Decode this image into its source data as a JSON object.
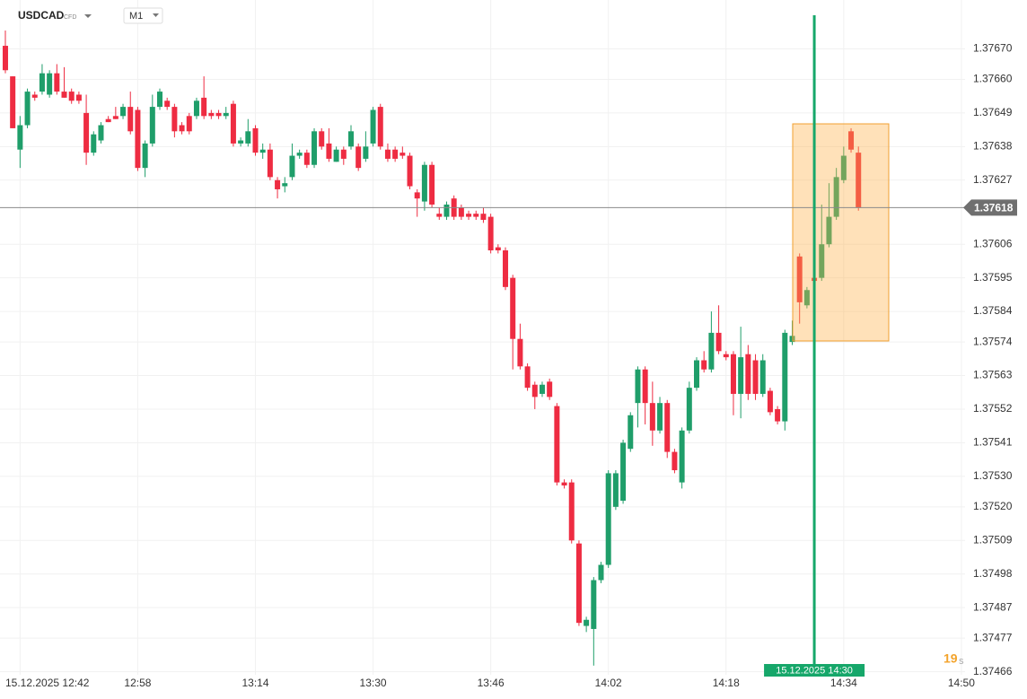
{
  "chart_data": {
    "type": "candlestick",
    "title": "USDCAD",
    "subtitle": "CFD",
    "timeframe": "M1",
    "up_color": "#1f9e6a",
    "down_color": "#ee2c42",
    "grid": true,
    "x": [
      760,
      761,
      762,
      763,
      764,
      765,
      766,
      767,
      768,
      769,
      770,
      771,
      772,
      773,
      774,
      775,
      776,
      777,
      778,
      779,
      780,
      781,
      782,
      783,
      784,
      785,
      786,
      787,
      788,
      789,
      790,
      791,
      792,
      793,
      794,
      795,
      796,
      797,
      798,
      799,
      800,
      801,
      802,
      803,
      804,
      805,
      806,
      807,
      808,
      809,
      810,
      811,
      812,
      813,
      814,
      815,
      816,
      817,
      818,
      819,
      820,
      821,
      822,
      823,
      824,
      825,
      826,
      827,
      828,
      829,
      830,
      831,
      832,
      833,
      834,
      835,
      836,
      837,
      838,
      839,
      840,
      841,
      842,
      843,
      844,
      845,
      846,
      847,
      848,
      849,
      850,
      851,
      852,
      853,
      854,
      855,
      856,
      857,
      858,
      859,
      860,
      861,
      862,
      863,
      864,
      865,
      866,
      867,
      868,
      869,
      870,
      871,
      872,
      873,
      874,
      875,
      876
    ],
    "open": [
      1.37671,
      1.37661,
      1.37637,
      1.37645,
      1.37655,
      1.37656,
      1.37655,
      1.37662,
      1.37656,
      1.37656,
      1.37655,
      1.37649,
      1.37636,
      1.3764,
      1.37647,
      1.37648,
      1.37648,
      1.37651,
      1.3765,
      1.37631,
      1.37639,
      1.37651,
      1.37653,
      1.37651,
      1.37645,
      1.37648,
      1.37648,
      1.37654,
      1.37649,
      1.37649,
      1.37648,
      1.37652,
      1.37639,
      1.37639,
      1.37644,
      1.37636,
      1.37637,
      1.37627,
      1.37625,
      1.37628,
      1.37635,
      1.37636,
      1.37632,
      1.37643,
      1.37639,
      1.37633,
      1.37637,
      1.37638,
      1.37638,
      1.37634,
      1.37639,
      1.37651,
      1.37637,
      1.37637,
      1.37636,
      1.37635,
      1.37623,
      1.3762,
      1.37632,
      1.37616,
      1.37615,
      1.37621,
      1.37618,
      1.37616,
      1.37616,
      1.37616,
      1.37615,
      1.37605,
      1.37604,
      1.37595,
      1.37575,
      1.37566,
      1.3756,
      1.37557,
      1.37561,
      1.37553,
      1.37528,
      1.37528,
      1.37508,
      1.37481,
      1.3748,
      1.37496,
      1.37501,
      1.3752,
      1.37522,
      1.37539,
      1.37554,
      1.37565,
      1.37554,
      1.37545,
      1.37554,
      1.37538,
      1.37528,
      1.37545,
      1.37559,
      1.37568,
      1.37565,
      1.37577,
      1.3757,
      1.3757,
      1.37557,
      1.3757,
      1.37568,
      1.37557,
      1.37558,
      1.37552,
      1.37548,
      1.37574,
      1.37602,
      1.37586,
      1.37595,
      1.37595,
      1.37606,
      1.37615,
      1.37627,
      1.37643,
      1.37636
    ],
    "high": [
      1.37676,
      1.37661,
      1.37648,
      1.37657,
      1.37656,
      1.37665,
      1.37663,
      1.37665,
      1.37664,
      1.37657,
      1.37656,
      1.37655,
      1.37643,
      1.37646,
      1.37648,
      1.37651,
      1.37652,
      1.37656,
      1.37651,
      1.3764,
      1.37655,
      1.37657,
      1.37654,
      1.37652,
      1.37646,
      1.37649,
      1.37654,
      1.37661,
      1.3765,
      1.3765,
      1.37651,
      1.37653,
      1.37641,
      1.37647,
      1.37645,
      1.37639,
      1.37639,
      1.37628,
      1.37628,
      1.37639,
      1.37637,
      1.37637,
      1.37644,
      1.37644,
      1.37644,
      1.37638,
      1.37638,
      1.37645,
      1.37639,
      1.37643,
      1.37651,
      1.37652,
      1.37639,
      1.37638,
      1.37638,
      1.37636,
      1.37624,
      1.37633,
      1.37633,
      1.37618,
      1.3762,
      1.37622,
      1.37619,
      1.37617,
      1.37617,
      1.37618,
      1.37616,
      1.37606,
      1.37605,
      1.37596,
      1.3758,
      1.37567,
      1.37561,
      1.37561,
      1.37562,
      1.37554,
      1.37529,
      1.37529,
      1.37509,
      1.37484,
      1.37497,
      1.37502,
      1.37532,
      1.37532,
      1.37542,
      1.37551,
      1.37566,
      1.37566,
      1.37561,
      1.37556,
      1.37555,
      1.37539,
      1.37546,
      1.37561,
      1.37569,
      1.37571,
      1.37584,
      1.37586,
      1.37571,
      1.37571,
      1.37579,
      1.37573,
      1.3757,
      1.3757,
      1.37559,
      1.37553,
      1.37578,
      1.37581,
      1.37603,
      1.37592,
      1.37618,
      1.37619,
      1.37626,
      1.37631,
      1.37638,
      1.37644,
      1.37638
    ],
    "low": [
      1.37662,
      1.37644,
      1.37631,
      1.37644,
      1.37653,
      1.37655,
      1.37654,
      1.37655,
      1.37654,
      1.37652,
      1.37652,
      1.37632,
      1.37635,
      1.37639,
      1.37646,
      1.37647,
      1.37647,
      1.37642,
      1.3763,
      1.37628,
      1.37638,
      1.3765,
      1.3765,
      1.37641,
      1.37642,
      1.37642,
      1.37647,
      1.37647,
      1.37647,
      1.37647,
      1.37647,
      1.37638,
      1.37638,
      1.37638,
      1.37635,
      1.37634,
      1.37627,
      1.37621,
      1.37623,
      1.37627,
      1.37634,
      1.37631,
      1.37631,
      1.37637,
      1.37633,
      1.37633,
      1.37632,
      1.37637,
      1.3763,
      1.37633,
      1.37638,
      1.37637,
      1.37633,
      1.37633,
      1.37634,
      1.37624,
      1.37615,
      1.37617,
      1.37618,
      1.37614,
      1.37614,
      1.37614,
      1.37614,
      1.37614,
      1.37614,
      1.37613,
      1.37603,
      1.37603,
      1.37591,
      1.37565,
      1.37565,
      1.37558,
      1.37552,
      1.37556,
      1.37555,
      1.37527,
      1.37526,
      1.37508,
      1.37481,
      1.37479,
      1.37468,
      1.37495,
      1.375,
      1.37519,
      1.37521,
      1.37538,
      1.37546,
      1.37547,
      1.3754,
      1.37544,
      1.37536,
      1.37531,
      1.37526,
      1.37544,
      1.37558,
      1.37564,
      1.37564,
      1.3757,
      1.37568,
      1.3755,
      1.37549,
      1.37555,
      1.37555,
      1.37556,
      1.3755,
      1.37547,
      1.37545,
      1.37573,
      1.3758,
      1.37585,
      1.37593,
      1.37594,
      1.37605,
      1.37614,
      1.37626,
      1.37636,
      1.37617
    ],
    "close": [
      1.37663,
      1.37644,
      1.37645,
      1.37656,
      1.37654,
      1.37662,
      1.37662,
      1.37656,
      1.37654,
      1.37653,
      1.37653,
      1.37636,
      1.37642,
      1.37645,
      1.37646,
      1.37647,
      1.37651,
      1.37643,
      1.37631,
      1.37639,
      1.37651,
      1.37656,
      1.37651,
      1.37643,
      1.37643,
      1.37643,
      1.37653,
      1.37648,
      1.37648,
      1.37648,
      1.37649,
      1.37639,
      1.3764,
      1.37643,
      1.37636,
      1.37637,
      1.37628,
      1.37624,
      1.37626,
      1.37635,
      1.37636,
      1.37632,
      1.37643,
      1.37638,
      1.37634,
      1.37637,
      1.37634,
      1.37643,
      1.37631,
      1.37638,
      1.3765,
      1.37638,
      1.37634,
      1.37634,
      1.37635,
      1.37625,
      1.37621,
      1.37632,
      1.37619,
      1.37615,
      1.37619,
      1.37615,
      1.37615,
      1.37615,
      1.37615,
      1.37614,
      1.37604,
      1.37604,
      1.37592,
      1.37575,
      1.37566,
      1.37559,
      1.37556,
      1.3756,
      1.37556,
      1.37528,
      1.37527,
      1.37509,
      1.37482,
      1.37483,
      1.37496,
      1.37501,
      1.37531,
      1.37531,
      1.37541,
      1.3755,
      1.37565,
      1.37554,
      1.37545,
      1.37554,
      1.37538,
      1.37532,
      1.37545,
      1.37559,
      1.37568,
      1.37565,
      1.37577,
      1.37571,
      1.37569,
      1.37557,
      1.37569,
      1.37557,
      1.37557,
      1.37568,
      1.37551,
      1.37548,
      1.37577,
      1.37576,
      1.37587,
      1.37591,
      1.37594,
      1.37606,
      1.37615,
      1.37628,
      1.37635,
      1.37637,
      1.37618
    ],
    "last_price": 1.37618,
    "xlim": [
      759.27,
      890.5
    ],
    "xticks": [
      {
        "value": 762,
        "label": "15.12.2025 12:42"
      },
      {
        "value": 778,
        "label": "12:58"
      },
      {
        "value": 794,
        "label": "13:14"
      },
      {
        "value": 810,
        "label": "13:30"
      },
      {
        "value": 826,
        "label": "13:46"
      },
      {
        "value": 842,
        "label": "14:02"
      },
      {
        "value": 858,
        "label": "14:18"
      },
      {
        "value": 874,
        "label": "14:34"
      },
      {
        "value": 890,
        "label": "14:50"
      }
    ],
    "ylim": [
      1.37465,
      1.37686
    ],
    "yticks": [
      {
        "value": 1.3767,
        "label": "1.37670"
      },
      {
        "value": 1.3766,
        "label": "1.37660"
      },
      1.37649,
      1.37638,
      1.37627,
      1.37606,
      1.37595,
      1.37584,
      1.37574,
      1.37563,
      1.37552,
      1.37541,
      {
        "value": 1.3753,
        "label": "1.37530"
      },
      {
        "value": 1.3752,
        "label": "1.37520"
      },
      1.37509,
      1.37498,
      1.37487,
      1.37477,
      1.37466
    ],
    "marker": {
      "value": 870,
      "label": "15.12.2025 14:30",
      "color": "#16a76a"
    },
    "countdown": 19,
    "countdown_unit": "s"
  }
}
